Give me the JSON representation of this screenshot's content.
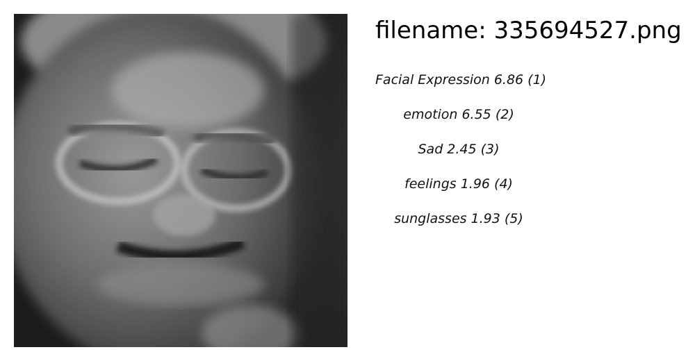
{
  "file": {
    "label": "filename: 335694527.png"
  },
  "photo": {
    "subject_icon": "grayscale-face-photo"
  },
  "labels": [
    {
      "name": "Facial Expression",
      "score": "6.86 (1)"
    },
    {
      "name": "emotion",
      "score": "6.55 (2)"
    },
    {
      "name": "Sad",
      "score": "2.45 (3)"
    },
    {
      "name": "feelings",
      "score": "1.96 (4)"
    },
    {
      "name": "sunglasses",
      "score": "1.93 (5)"
    }
  ]
}
